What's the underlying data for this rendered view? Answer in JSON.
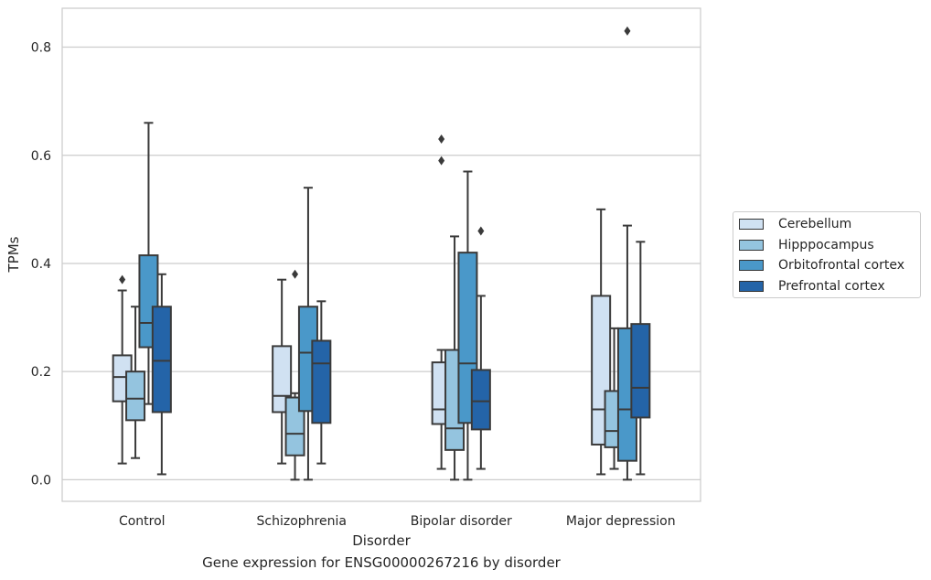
{
  "caption": "Gene expression for ENSG00000267216 by disorder",
  "chart_data": {
    "type": "box",
    "title": "",
    "xlabel": "Disorder",
    "ylabel": "TPMs",
    "ylim": [
      -0.04,
      0.872
    ],
    "yticks": [
      0.0,
      0.2,
      0.4,
      0.6,
      0.8
    ],
    "ytick_labels": [
      "0.0",
      "0.2",
      "0.4",
      "0.6",
      "0.8"
    ],
    "grid": true,
    "legend_position": "center-right",
    "categories": [
      "Control",
      "Schizophrenia",
      "Bipolar disorder",
      "Major depression"
    ],
    "series": [
      {
        "name": "Cerebellum",
        "color": "#d0e1f2",
        "boxes": [
          {
            "whisker_low": 0.03,
            "q1": 0.145,
            "median": 0.19,
            "q3": 0.23,
            "whisker_high": 0.35,
            "outliers": [
              0.37
            ]
          },
          {
            "whisker_low": 0.03,
            "q1": 0.125,
            "median": 0.155,
            "q3": 0.247,
            "whisker_high": 0.37,
            "outliers": []
          },
          {
            "whisker_low": 0.02,
            "q1": 0.103,
            "median": 0.13,
            "q3": 0.217,
            "whisker_high": 0.24,
            "outliers": [
              0.59,
              0.63
            ]
          },
          {
            "whisker_low": 0.01,
            "q1": 0.065,
            "median": 0.13,
            "q3": 0.34,
            "whisker_high": 0.5,
            "outliers": []
          }
        ]
      },
      {
        "name": "Hipppocampus",
        "color": "#94c4df",
        "boxes": [
          {
            "whisker_low": 0.04,
            "q1": 0.11,
            "median": 0.15,
            "q3": 0.2,
            "whisker_high": 0.32,
            "outliers": []
          },
          {
            "whisker_low": 0.0,
            "q1": 0.045,
            "median": 0.085,
            "q3": 0.152,
            "whisker_high": 0.16,
            "outliers": [
              0.38
            ]
          },
          {
            "whisker_low": 0.0,
            "q1": 0.055,
            "median": 0.095,
            "q3": 0.24,
            "whisker_high": 0.45,
            "outliers": []
          },
          {
            "whisker_low": 0.02,
            "q1": 0.06,
            "median": 0.09,
            "q3": 0.164,
            "whisker_high": 0.28,
            "outliers": []
          }
        ]
      },
      {
        "name": "Orbitofrontal cortex",
        "color": "#4a98c9",
        "boxes": [
          {
            "whisker_low": 0.14,
            "q1": 0.245,
            "median": 0.29,
            "q3": 0.415,
            "whisker_high": 0.66,
            "outliers": []
          },
          {
            "whisker_low": 0.0,
            "q1": 0.127,
            "median": 0.235,
            "q3": 0.32,
            "whisker_high": 0.54,
            "outliers": []
          },
          {
            "whisker_low": 0.0,
            "q1": 0.105,
            "median": 0.215,
            "q3": 0.42,
            "whisker_high": 0.57,
            "outliers": []
          },
          {
            "whisker_low": 0.0,
            "q1": 0.035,
            "median": 0.13,
            "q3": 0.28,
            "whisker_high": 0.47,
            "outliers": [
              0.83
            ]
          }
        ]
      },
      {
        "name": "Prefrontal cortex",
        "color": "#2464a8",
        "boxes": [
          {
            "whisker_low": 0.01,
            "q1": 0.125,
            "median": 0.22,
            "q3": 0.32,
            "whisker_high": 0.38,
            "outliers": []
          },
          {
            "whisker_low": 0.03,
            "q1": 0.105,
            "median": 0.215,
            "q3": 0.257,
            "whisker_high": 0.33,
            "outliers": []
          },
          {
            "whisker_low": 0.02,
            "q1": 0.093,
            "median": 0.145,
            "q3": 0.203,
            "whisker_high": 0.34,
            "outliers": [
              0.46
            ]
          },
          {
            "whisker_low": 0.01,
            "q1": 0.115,
            "median": 0.17,
            "q3": 0.288,
            "whisker_high": 0.44,
            "outliers": []
          }
        ]
      }
    ]
  }
}
